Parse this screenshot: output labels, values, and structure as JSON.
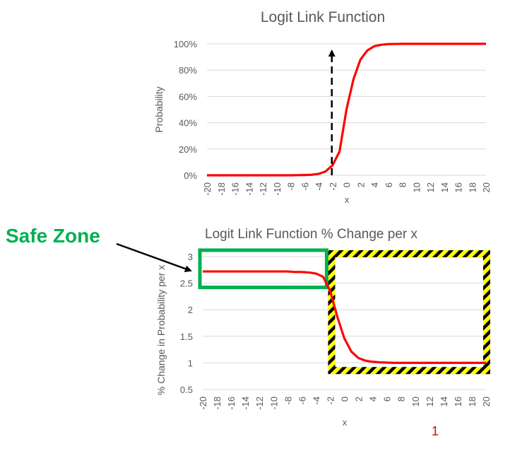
{
  "colors": {
    "curve": "#ff0000",
    "grid": "#d9d9d9",
    "text": "#595959",
    "safe_zone": "#00b050",
    "hazard_yellow": "#ffff00",
    "hazard_black": "#000000"
  },
  "annotations": {
    "safe_zone_label": "Safe Zone",
    "footnote": "1"
  },
  "chart_data": [
    {
      "type": "line",
      "title": "Logit Link Function",
      "xlabel": "x",
      "ylabel": "Probability",
      "categories": [
        -20,
        -19,
        -18,
        -17,
        -16,
        -15,
        -14,
        -13,
        -12,
        -11,
        -10,
        -9,
        -8,
        -7,
        -6,
        -5,
        -4,
        -3,
        -2,
        -1,
        0,
        1,
        2,
        3,
        4,
        5,
        6,
        7,
        8,
        9,
        10,
        11,
        12,
        13,
        14,
        15,
        16,
        17,
        18,
        19,
        20
      ],
      "x_tick_labels": [
        "-20",
        "-18",
        "-16",
        "-14",
        "-12",
        "-10",
        "-8",
        "-6",
        "-4",
        "-2",
        "0",
        "2",
        "4",
        "6",
        "8",
        "10",
        "12",
        "14",
        "16",
        "18",
        "20"
      ],
      "y_ticks": [
        0,
        0.2,
        0.4,
        0.6,
        0.8,
        1.0
      ],
      "y_tick_labels": [
        "0%",
        "20%",
        "40%",
        "60%",
        "80%",
        "100%"
      ],
      "ylim": [
        0,
        1
      ],
      "grid": true,
      "series": [
        {
          "values": [
            0,
            0,
            0,
            0,
            0,
            0,
            0,
            0,
            0,
            0,
            0,
            0,
            0,
            0.001,
            0.002,
            0.004,
            0.011,
            0.029,
            0.076,
            0.18,
            0.5,
            0.73,
            0.88,
            0.95,
            0.982,
            0.993,
            0.998,
            0.999,
            1,
            1,
            1,
            1,
            1,
            1,
            1,
            1,
            1,
            1,
            1,
            1,
            1
          ]
        }
      ],
      "marker_line": {
        "x": -2,
        "style": "dashed-arrow"
      }
    },
    {
      "type": "line",
      "title": "Logit Link Function % Change per x",
      "xlabel": "x",
      "ylabel": "% Change in Probability per x",
      "categories": [
        -20,
        -19,
        -18,
        -17,
        -16,
        -15,
        -14,
        -13,
        -12,
        -11,
        -10,
        -9,
        -8,
        -7,
        -6,
        -5,
        -4,
        -3,
        -2,
        -1,
        0,
        1,
        2,
        3,
        4,
        5,
        6,
        7,
        8,
        9,
        10,
        11,
        12,
        13,
        14,
        15,
        16,
        17,
        18,
        19,
        20
      ],
      "x_tick_labels": [
        "-20",
        "-18",
        "-16",
        "-14",
        "-12",
        "-10",
        "-8",
        "-6",
        "-4",
        "-2",
        "0",
        "2",
        "4",
        "6",
        "8",
        "10",
        "12",
        "14",
        "16",
        "18",
        "20"
      ],
      "y_ticks": [
        0.5,
        1,
        1.5,
        2,
        2.5,
        3
      ],
      "y_tick_labels": [
        "0.5",
        "1",
        "1.5",
        "2",
        "2.5",
        "3"
      ],
      "ylim": [
        0.5,
        3
      ],
      "grid": true,
      "series": [
        {
          "values": [
            2.72,
            2.72,
            2.72,
            2.72,
            2.72,
            2.72,
            2.72,
            2.72,
            2.72,
            2.72,
            2.72,
            2.72,
            2.72,
            2.71,
            2.71,
            2.7,
            2.68,
            2.62,
            2.35,
            1.87,
            1.46,
            1.21,
            1.09,
            1.04,
            1.02,
            1.01,
            1.005,
            1,
            1,
            1,
            1,
            1,
            1,
            1,
            1,
            1,
            1,
            1,
            1,
            1,
            1
          ]
        }
      ],
      "regions": [
        {
          "name": "safe-zone",
          "x_range": [
            -20,
            -2.5
          ],
          "y_range": [
            2.42,
            3.12
          ]
        },
        {
          "name": "hazard-zone",
          "x_range": [
            -2.3,
            20.6
          ],
          "y_range": [
            0.79,
            3.12
          ]
        }
      ]
    }
  ]
}
